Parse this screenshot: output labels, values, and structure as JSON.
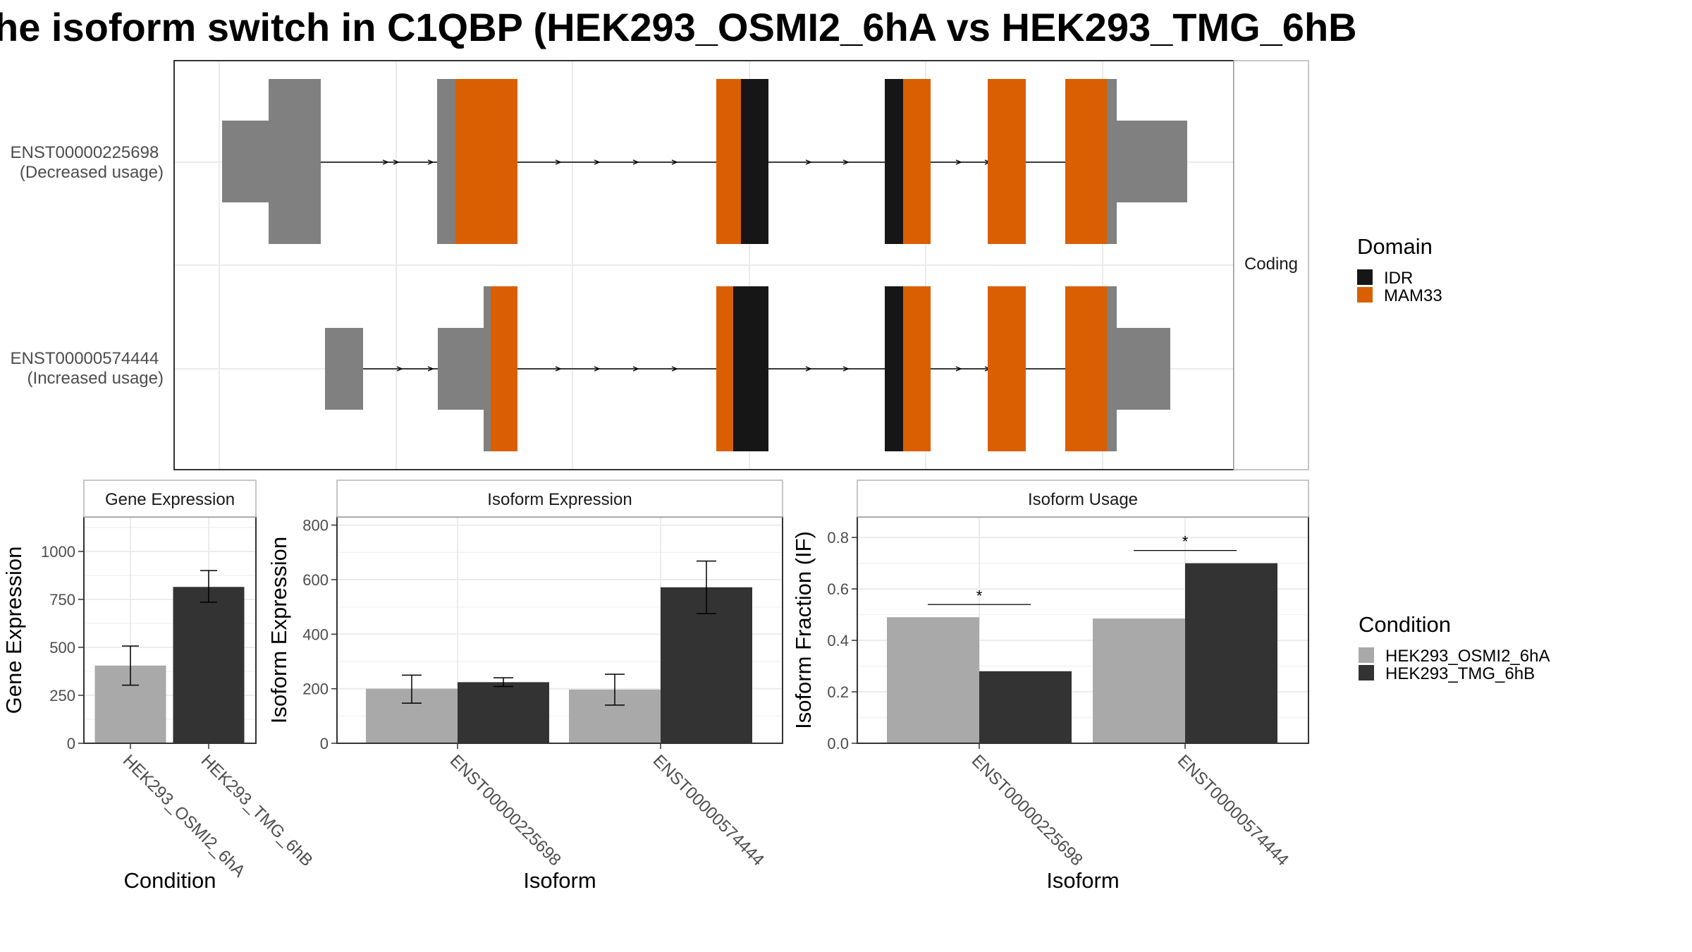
{
  "title": "he isoform switch in C1QBP (HEK293_OSMI2_6hA vs HEK293_TMG_6hB",
  "colors": {
    "IDR": "#161616",
    "MAM33": "#d95f02",
    "utr": "#808080",
    "cond_a": "#a9a9a9",
    "cond_b": "#333333",
    "grid": "#ebebeb",
    "panel_border": "#333333",
    "strip_fill": "#ffffff"
  },
  "structure": {
    "facet_label": "Coding",
    "isoforms": [
      {
        "id": "ENST00000225698",
        "note": "(Decreased usage)"
      },
      {
        "id": "ENST00000574444",
        "note": "(Increased usage)"
      }
    ]
  },
  "legends": {
    "domain": {
      "title": "Domain",
      "items": [
        {
          "label": "IDR",
          "color_key": "IDR"
        },
        {
          "label": "MAM33",
          "color_key": "MAM33"
        }
      ]
    },
    "condition": {
      "title": "Condition",
      "items": [
        {
          "label": "HEK293_OSMI2_6hA",
          "color_key": "cond_a"
        },
        {
          "label": "HEK293_TMG_6hB",
          "color_key": "cond_b"
        }
      ]
    }
  },
  "chart_data": [
    {
      "type": "bar",
      "title": "Gene Expression",
      "xlabel": "Condition",
      "ylabel": "Gene Expression",
      "ylim": [
        0,
        1180
      ],
      "yticks": [
        0,
        250,
        500,
        750,
        1000
      ],
      "categories": [
        "HEK293_OSMI2_6hA",
        "HEK293_TMG_6hB"
      ],
      "values": [
        405,
        815
      ],
      "err_low": [
        303,
        735
      ],
      "err_high": [
        507,
        900
      ],
      "grid": true
    },
    {
      "type": "bar",
      "title": "Isoform Expression",
      "xlabel": "Isoform",
      "ylabel": "Isoform Expression",
      "ylim": [
        0,
        830
      ],
      "yticks": [
        0,
        200,
        400,
        600,
        800
      ],
      "categories": [
        "ENST00000225698",
        "ENST00000574444"
      ],
      "series": [
        {
          "name": "HEK293_OSMI2_6hA",
          "values": [
            200,
            197
          ],
          "err_low": [
            147,
            140
          ],
          "err_high": [
            250,
            253
          ]
        },
        {
          "name": "HEK293_TMG_6hB",
          "values": [
            224,
            572
          ],
          "err_low": [
            208,
            475
          ],
          "err_high": [
            240,
            668
          ]
        }
      ],
      "grid": true
    },
    {
      "type": "bar",
      "title": "Isoform Usage",
      "xlabel": "Isoform",
      "ylabel": "Isoform Fraction (IF)",
      "ylim": [
        0,
        0.88
      ],
      "yticks": [
        "0.0",
        "0.2",
        "0.4",
        "0.6",
        "0.8"
      ],
      "categories": [
        "ENST00000225698",
        "ENST00000574444"
      ],
      "series": [
        {
          "name": "HEK293_OSMI2_6hA",
          "values": [
            0.49,
            0.485
          ]
        },
        {
          "name": "HEK293_TMG_6hB",
          "values": [
            0.28,
            0.7
          ]
        }
      ],
      "significance": [
        {
          "category": "ENST00000225698",
          "label": "*"
        },
        {
          "category": "ENST00000574444",
          "label": "*"
        }
      ],
      "grid": true
    }
  ]
}
